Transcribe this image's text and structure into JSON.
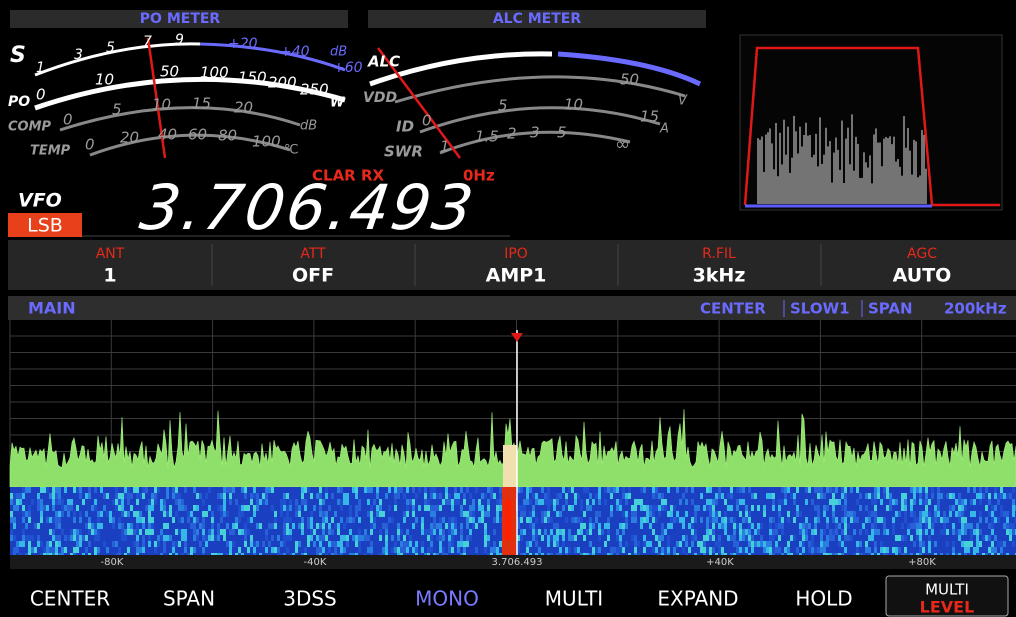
{
  "po_meter": {
    "title": "PO METER",
    "s_scale": {
      "label": "S",
      "ticks": [
        "1",
        "3",
        "5",
        "7",
        "9",
        "+20",
        "+40",
        "+60"
      ],
      "unit": "dB"
    },
    "po_scale": {
      "label": "PO",
      "ticks": [
        "0",
        "10",
        "50",
        "100",
        "150",
        "200",
        "250"
      ],
      "unit": "W"
    },
    "comp_scale": {
      "label": "COMP",
      "ticks": [
        "0",
        "5",
        "10",
        "15",
        "20"
      ],
      "unit": "dB"
    },
    "temp_scale": {
      "label": "TEMP",
      "ticks": [
        "0",
        "20",
        "40",
        "60",
        "80",
        "100"
      ],
      "unit": "℃"
    }
  },
  "alc_meter": {
    "title": "ALC METER",
    "alc_scale": {
      "label": "ALC"
    },
    "vdd_scale": {
      "label": "VDD",
      "ticks": [
        "50"
      ],
      "unit": "V"
    },
    "id_scale": {
      "label": "ID",
      "ticks": [
        "0",
        "5",
        "10",
        "15"
      ],
      "unit": "A"
    },
    "swr_scale": {
      "label": "SWR",
      "ticks": [
        "1",
        "1.5",
        "2",
        "3",
        "5",
        "∞"
      ]
    }
  },
  "clarifier": {
    "label": "CLAR RX",
    "offset": "0Hz"
  },
  "vfo": {
    "label": "VFO",
    "mode": "LSB",
    "frequency": "3.706.493"
  },
  "function_bar": [
    {
      "label": "ANT",
      "value": "1"
    },
    {
      "label": "ATT",
      "value": "OFF"
    },
    {
      "label": "IPO",
      "value": "AMP1"
    },
    {
      "label": "R.FIL",
      "value": "3kHz"
    },
    {
      "label": "AGC",
      "value": "AUTO"
    }
  ],
  "scope": {
    "label": "MAIN",
    "status": [
      "CENTER",
      "SLOW1",
      "SPAN"
    ],
    "span": "200kHz",
    "axis_labels": [
      "-80K",
      "-40K",
      "3.706.493",
      "+40K",
      "+80K"
    ]
  },
  "soft_keys": [
    "CENTER",
    "SPAN",
    "3DSS",
    "MONO",
    "MULTI",
    "EXPAND",
    "HOLD"
  ],
  "multi_key": {
    "label": "MULTI",
    "sublabel": "LEVEL"
  }
}
